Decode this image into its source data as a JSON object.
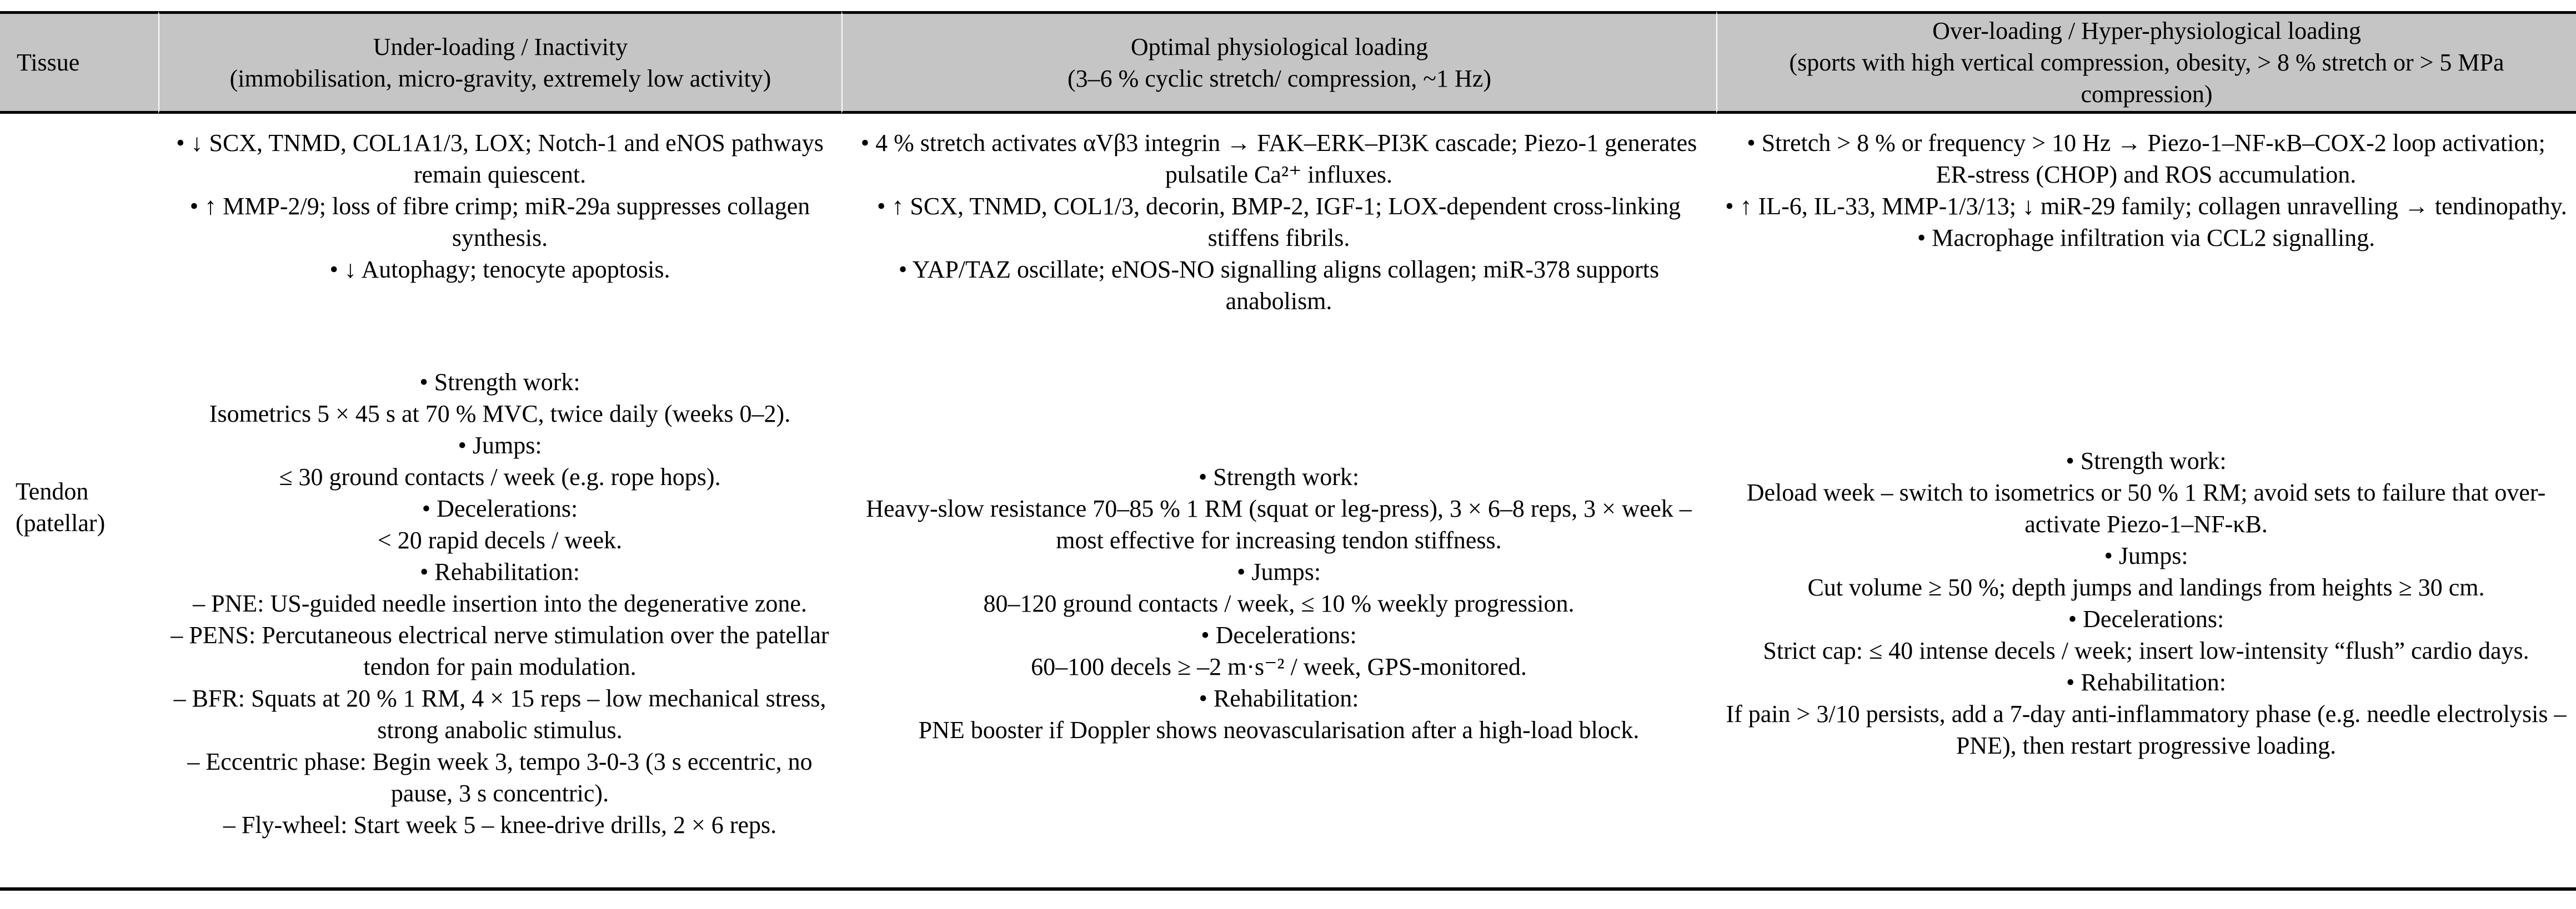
{
  "colors": {
    "header_bg": "#c5c5c5",
    "border": "#000000",
    "text": "#000000"
  },
  "headers": {
    "tissue": "Tissue",
    "under": {
      "title": "Under-loading / Inactivity",
      "subtitle": "(immobilisation, micro-gravity, extremely low activity)"
    },
    "optimal": {
      "title": "Optimal physiological loading",
      "subtitle": "(3–6 % cyclic stretch/ compression, ~1 Hz)"
    },
    "over": {
      "title": "Over-loading / Hyper-physiological loading",
      "subtitle": "(sports with high vertical compression, obesity, > 8 % stretch or > 5 MPa compression)"
    }
  },
  "body": {
    "tissue": "Tendon (patellar)",
    "under": {
      "mechanisms": [
        "• ↓ SCX, TNMD, COL1A1/3, LOX; Notch-1 and eNOS pathways remain quiescent.",
        "• ↑ MMP-2/9; loss of fibre crimp; miR-29a suppresses collagen synthesis.",
        "• ↓ Autophagy; tenocyte apoptosis."
      ],
      "training": [
        "• Strength work:",
        "Isometrics 5 × 45 s at 70 % MVC, twice daily (weeks 0–2).",
        "• Jumps:",
        "≤ 30 ground contacts / week (e.g. rope hops).",
        "• Decelerations:",
        "< 20 rapid decels / week.",
        "• Rehabilitation:",
        "– PNE: US-guided needle insertion into the degenerative zone.",
        "– PENS: Percutaneous electrical nerve stimulation over the patellar tendon for pain modulation.",
        "– BFR: Squats at 20 % 1 RM, 4 × 15 reps – low mechanical stress, strong anabolic stimulus.",
        "– Eccentric phase: Begin week 3, tempo 3-0-3 (3 s eccentric, no pause, 3 s concentric).",
        "– Fly-wheel: Start week 5 – knee-drive drills, 2 × 6 reps."
      ]
    },
    "optimal": {
      "mechanisms": [
        "• 4 % stretch activates αVβ3 integrin → FAK–ERK–PI3K cascade; Piezo-1 generates pulsatile Ca²⁺ influxes.",
        "• ↑ SCX, TNMD, COL1/3, decorin, BMP-2, IGF-1; LOX-dependent cross-linking stiffens fibrils.",
        "• YAP/TAZ oscillate; eNOS-NO signalling aligns collagen; miR-378 supports anabolism."
      ],
      "training": [
        "• Strength work:",
        "Heavy-slow resistance 70–85 % 1 RM (squat or leg-press), 3 × 6–8 reps, 3 × week – most effective for increasing tendon stiffness.",
        "• Jumps:",
        "80–120 ground contacts / week, ≤ 10 % weekly progression.",
        "• Decelerations:",
        "60–100 decels ≥ –2 m·s⁻² / week, GPS-monitored.",
        "• Rehabilitation:",
        "PNE booster if Doppler shows neovascularisation after a high-load block."
      ]
    },
    "over": {
      "mechanisms": [
        "• Stretch > 8 % or frequency > 10 Hz → Piezo-1–NF-κB–COX-2 loop activation; ER-stress (CHOP) and ROS accumulation.",
        "• ↑ IL-6, IL-33, MMP-1/3/13; ↓ miR-29 family; collagen unravelling → tendinopathy.",
        "• Macrophage infiltration via CCL2 signalling."
      ],
      "training": [
        "• Strength work:",
        "Deload week – switch to isometrics or 50 % 1 RM; avoid sets to failure that over-activate Piezo-1–NF-κB.",
        "• Jumps:",
        "Cut volume ≥ 50 %; depth jumps and landings from heights ≥ 30 cm.",
        "• Decelerations:",
        "Strict cap: ≤ 40 intense decels / week; insert low-intensity “flush” cardio days.",
        "• Rehabilitation:",
        "If pain > 3/10 persists, add a 7-day anti-inflammatory phase (e.g. needle electrolysis – PNE), then restart progressive loading."
      ]
    }
  }
}
